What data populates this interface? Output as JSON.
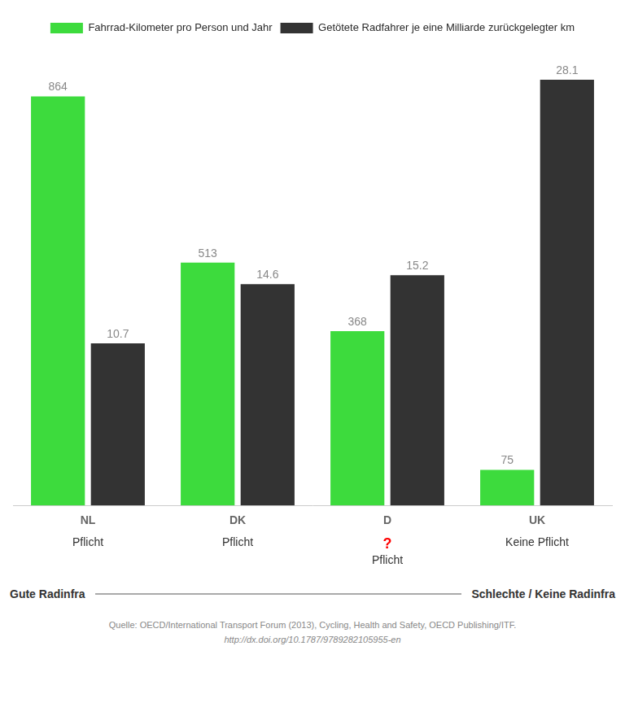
{
  "chart_data": {
    "type": "bar",
    "categories": [
      "NL",
      "DK",
      "D",
      "UK"
    ],
    "series": [
      {
        "name": "Fahrrad-Kilometer pro Person und Jahr",
        "color": "#3ddb3d",
        "values": [
          864,
          513,
          368,
          75
        ]
      },
      {
        "name": "Getötete Radfahrer je eine Milliarde zurückgelegter km",
        "color": "#333333",
        "values": [
          10.7,
          14.6,
          15.2,
          28.1
        ],
        "axis": "y2"
      }
    ],
    "ylim": [
      0,
      980
    ],
    "y2lim": [
      0,
      30.625
    ],
    "data_labels": true,
    "tick_labels": "x",
    "grid": false,
    "legend": "top",
    "annotations": [
      {
        "text": "Pflicht",
        "category": "NL"
      },
      {
        "text": "Pflicht",
        "category": "DK"
      },
      {
        "text": "?",
        "category": "D",
        "color": "#ff0000"
      },
      {
        "text": "Pflicht",
        "category": "D"
      },
      {
        "text": "Keine Pflicht",
        "category": "UK"
      },
      {
        "text": "Gute Radinfra"
      },
      {
        "text": "Schlechte / Keine Radinfra"
      },
      {
        "text": "Quelle: OECD/International Transport Forum (2013), Cycling, Health and Safety, OECD Publishing/ITF."
      },
      {
        "text": "http://dx.doi.org/10.1787/9789282105955-en"
      }
    ]
  }
}
